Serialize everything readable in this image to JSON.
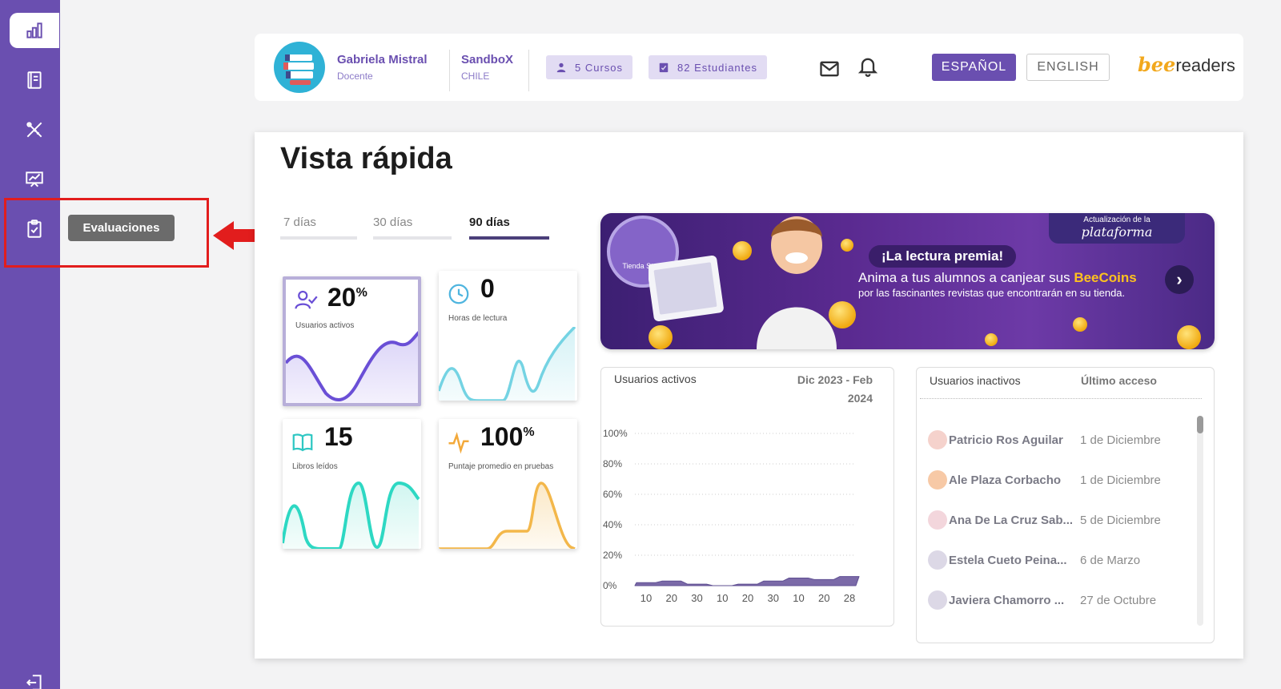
{
  "sidebar": {
    "items": [
      {
        "name": "dashboard",
        "icon": "bar-chart-icon"
      },
      {
        "name": "books",
        "icon": "book-icon"
      },
      {
        "name": "tools",
        "icon": "pencil-ruler-icon"
      },
      {
        "name": "presentations",
        "icon": "presentation-chart-icon"
      },
      {
        "name": "evaluations",
        "icon": "clipboard-check-icon"
      },
      {
        "name": "logout",
        "icon": "logout-icon"
      }
    ],
    "tooltip": "Evaluaciones"
  },
  "header": {
    "user_name": "Gabriela Mistral",
    "user_role": "Docente",
    "org_name": "SandboX",
    "org_country": "CHILE",
    "courses_chip": "5 Cursos",
    "students_chip": "82 Estudiantes",
    "lang_es": "ESPAÑOL",
    "lang_en": "ENGLISH",
    "logo_bee": "bee",
    "logo_readers": "readers"
  },
  "main": {
    "title": "Vista rápida",
    "tabs": [
      "7 días",
      "30 días",
      "90 días"
    ],
    "active_tab": "90 días",
    "stats": [
      {
        "value": "20",
        "suffix": "%",
        "label": "Usuarios activos",
        "color": "#6a4fd6"
      },
      {
        "value": "0",
        "suffix": "",
        "label": "Horas de lectura",
        "color": "#5ec9e0"
      },
      {
        "value": "15",
        "suffix": "",
        "label": "Libros leídos",
        "color": "#2ed8c3"
      },
      {
        "value": "100",
        "suffix": "%",
        "label": "Puntaje promedio en pruebas",
        "color": "#f3b74a"
      }
    ]
  },
  "banner": {
    "tag_top": "Actualización de la",
    "tag_bottom": "plataforma",
    "title": "¡La lectura premia!",
    "line1_pre": "Anima a tus alumnos a canjear sus ",
    "line1_highlight": "BeeCoins",
    "line2": "por las fascinantes revistas que encontrarán en su tienda.",
    "store_label": "Tienda Store",
    "next_label": "›"
  },
  "chart_data": {
    "type": "area",
    "title": "Usuarios activos",
    "range_label": [
      "Dic 2023 - Feb",
      "2024"
    ],
    "x": [
      "10",
      "20",
      "30",
      "10",
      "20",
      "30",
      "10",
      "20",
      "28"
    ],
    "values": [
      2,
      3,
      1,
      0,
      1,
      3,
      5,
      4,
      6
    ],
    "ylim": [
      0,
      100
    ],
    "yticks": [
      "100%",
      "80%",
      "60%",
      "40%",
      "20%",
      "0%"
    ],
    "color": "#7b6aa8"
  },
  "inactive": {
    "header_users": "Usuarios inactivos",
    "header_last": "Último acceso",
    "rows": [
      {
        "name": "Patricio Ros Aguilar",
        "date": "1 de Diciembre"
      },
      {
        "name": "Ale Plaza Corbacho",
        "date": "1 de Diciembre"
      },
      {
        "name": "Ana De La Cruz Sab...",
        "date": "5 de Diciembre"
      },
      {
        "name": "Estela Cueto Peina...",
        "date": "6 de Marzo"
      },
      {
        "name": "Javiera Chamorro ...",
        "date": "27 de Octubre"
      }
    ]
  }
}
